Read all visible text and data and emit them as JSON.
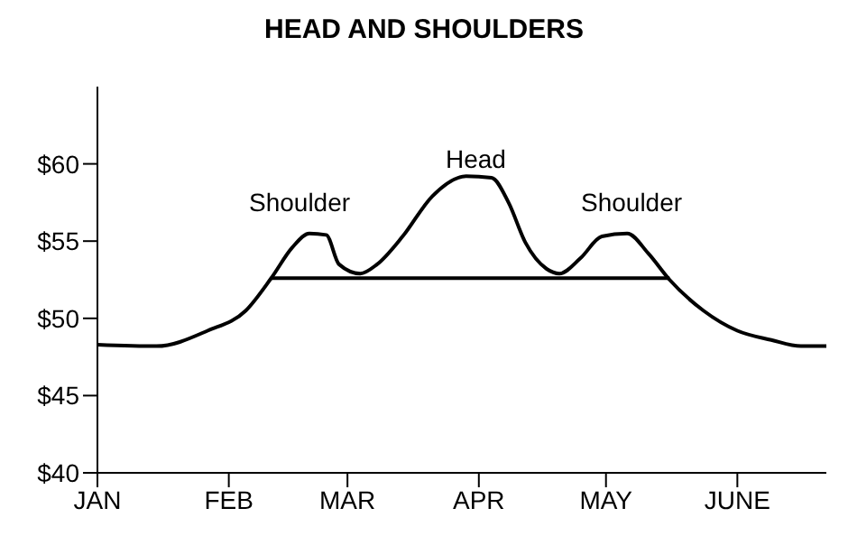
{
  "chart_data": {
    "type": "line",
    "title": "HEAD AND SHOULDERS",
    "series": [
      {
        "color": "#000000",
        "x": [
          "--01-01",
          "--01-15",
          "--01-27",
          "--02-05",
          "--02-11",
          "--02-16",
          "--02-20",
          "--02-24",
          "--02-27",
          "--03-04",
          "--03-08",
          "--03-14",
          "--03-21",
          "--03-29",
          "--04-04",
          "--04-08",
          "--04-12",
          "--04-17",
          "--04-20",
          "--04-25",
          "--04-30",
          "--05-06",
          "--05-11",
          "--05-16",
          "--05-24",
          "--06-01",
          "--06-09",
          "--06-16",
          "--06-22"
        ],
        "values": [
          48.3,
          48.2,
          49.2,
          50.5,
          52.6,
          54.6,
          55.5,
          55.4,
          53.5,
          52.9,
          53.5,
          55.3,
          57.9,
          59.2,
          59.1,
          57.5,
          54.9,
          53.2,
          52.9,
          53.9,
          55.3,
          55.5,
          54.2,
          52.5,
          50.5,
          49.2,
          48.6,
          48.2,
          48.2
        ]
      },
      {
        "color": "#000000",
        "x": [
          "--02-11",
          "--05-16"
        ],
        "values": [
          52.6,
          52.6
        ]
      }
    ],
    "xlim": [
      "--01-01",
      "--06-22"
    ],
    "xticks": [
      {
        "value": "--01-01",
        "label": "JAN"
      },
      {
        "value": "--02-01",
        "label": "FEB"
      },
      {
        "value": "--03-01",
        "label": "MAR"
      },
      {
        "value": "--04-01",
        "label": "APR"
      },
      {
        "value": "--05-01",
        "label": "MAY"
      },
      {
        "value": "--06-01",
        "label": "JUNE"
      }
    ],
    "ylim": [
      40,
      65
    ],
    "yticks": [
      {
        "value": 40,
        "label": "$40"
      },
      {
        "value": 45,
        "label": "$45"
      },
      {
        "value": 50,
        "label": "$50"
      },
      {
        "value": 55,
        "label": "$55"
      },
      {
        "value": 60,
        "label": "$60"
      }
    ],
    "annotations": [
      "Shoulder",
      "Head",
      "Shoulder"
    ],
    "grid": false,
    "marker": "none",
    "line_style": "solid"
  }
}
